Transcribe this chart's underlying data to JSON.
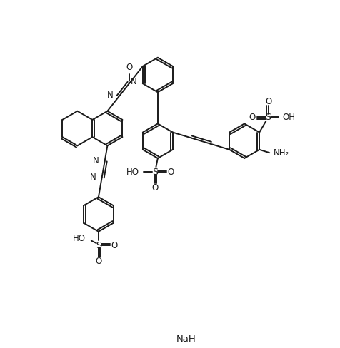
{
  "background": "#ffffff",
  "line_color": "#1a1a1a",
  "line_width": 1.4,
  "font_size": 8.5,
  "figsize": [
    4.77,
    4.88
  ],
  "dpi": 100,
  "xlim": [
    0,
    10
  ],
  "ylim": [
    -0.8,
    10.2
  ],
  "NaH_x": 5.5,
  "NaH_y": -0.55
}
